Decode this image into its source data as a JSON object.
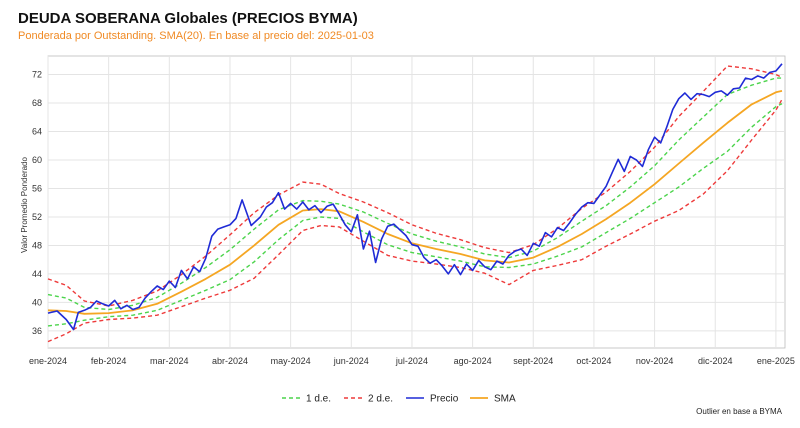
{
  "header": {
    "title": "DEUDA SOBERANA Globales (PRECIOS BYMA)",
    "subtitle": "Ponderada por Outstanding. SMA(20). En base al precio del: 2025-01-03"
  },
  "footnote": "Outlier en base a BYMA",
  "colors": {
    "price": "#1f2bd6",
    "sma": "#f5a623",
    "band1": "#4cd44c",
    "band2": "#ee3a3a",
    "grid": "#e4e4e4",
    "subtitle": "#f08a24"
  },
  "chart_data": {
    "type": "line",
    "title": "DEUDA SOBERANA Globales (PRECIOS BYMA)",
    "subtitle": "Ponderada por Outstanding. SMA(20). En base al precio del: 2025-01-03",
    "xlabel": "",
    "ylabel": "Valor Promedio Ponderado",
    "xlim": [
      0,
      12.15
    ],
    "ylim": [
      33.6,
      74.6
    ],
    "yticks": [
      36,
      40,
      44,
      48,
      52,
      56,
      60,
      64,
      68,
      72
    ],
    "xticks": [
      {
        "x": 0,
        "label": "ene-2024"
      },
      {
        "x": 1,
        "label": "feb-2024"
      },
      {
        "x": 2,
        "label": "mar-2024"
      },
      {
        "x": 3,
        "label": "abr-2024"
      },
      {
        "x": 4,
        "label": "may-2024"
      },
      {
        "x": 5,
        "label": "jun-2024"
      },
      {
        "x": 6,
        "label": "jul-2024"
      },
      {
        "x": 7,
        "label": "ago-2024"
      },
      {
        "x": 8,
        "label": "sept-2024"
      },
      {
        "x": 9,
        "label": "oct-2024"
      },
      {
        "x": 10,
        "label": "nov-2024"
      },
      {
        "x": 11,
        "label": "dic-2024"
      },
      {
        "x": 12,
        "label": "ene-2025"
      }
    ],
    "grid": true,
    "legend": {
      "position": "bottom-center",
      "entries": [
        {
          "key": "band1",
          "label": "1 d.e."
        },
        {
          "key": "band2",
          "label": "2 d.e."
        },
        {
          "key": "price",
          "label": "Precio"
        },
        {
          "key": "sma",
          "label": "SMA"
        }
      ]
    },
    "series": [
      {
        "name": "Precio",
        "key": "price",
        "x": [
          0.0,
          0.15,
          0.3,
          0.42,
          0.5,
          0.6,
          0.7,
          0.8,
          0.9,
          1.0,
          1.1,
          1.2,
          1.3,
          1.4,
          1.5,
          1.6,
          1.7,
          1.8,
          1.9,
          2.0,
          2.1,
          2.2,
          2.3,
          2.4,
          2.5,
          2.6,
          2.7,
          2.8,
          2.9,
          3.0,
          3.1,
          3.2,
          3.35,
          3.5,
          3.6,
          3.7,
          3.8,
          3.9,
          4.0,
          4.1,
          4.2,
          4.3,
          4.4,
          4.5,
          4.6,
          4.7,
          4.8,
          4.9,
          5.0,
          5.1,
          5.2,
          5.3,
          5.4,
          5.5,
          5.6,
          5.7,
          5.8,
          5.9,
          6.0,
          6.1,
          6.2,
          6.3,
          6.4,
          6.5,
          6.6,
          6.7,
          6.8,
          6.9,
          7.0,
          7.1,
          7.2,
          7.3,
          7.4,
          7.5,
          7.6,
          7.7,
          7.8,
          7.9,
          8.0,
          8.1,
          8.2,
          8.3,
          8.4,
          8.5,
          8.6,
          8.7,
          8.8,
          8.9,
          9.0,
          9.1,
          9.2,
          9.3,
          9.4,
          9.5,
          9.6,
          9.7,
          9.8,
          9.9,
          10.0,
          10.1,
          10.2,
          10.3,
          10.4,
          10.5,
          10.6,
          10.7,
          10.8,
          10.9,
          11.0,
          11.1,
          11.2,
          11.3,
          11.4,
          11.5,
          11.6,
          11.7,
          11.8,
          11.9,
          12.0,
          12.1
        ],
        "values": [
          38.5,
          38.8,
          37.6,
          36.2,
          38.6,
          38.9,
          39.3,
          40.2,
          39.8,
          39.5,
          40.3,
          39.1,
          39.6,
          39.0,
          39.3,
          40.6,
          41.5,
          42.3,
          41.8,
          43.0,
          42.1,
          44.5,
          43.3,
          45.0,
          44.3,
          46.2,
          49.3,
          50.3,
          50.6,
          50.9,
          51.8,
          54.4,
          50.8,
          52.0,
          53.4,
          54.0,
          55.4,
          53.1,
          53.9,
          53.1,
          54.1,
          53.0,
          53.6,
          52.6,
          53.5,
          53.8,
          52.4,
          50.9,
          49.9,
          52.3,
          47.5,
          50.0,
          45.6,
          48.9,
          50.7,
          51.0,
          50.2,
          49.4,
          48.1,
          47.9,
          46.3,
          45.5,
          46.0,
          45.1,
          44.0,
          45.3,
          43.9,
          45.4,
          44.5,
          45.9,
          45.0,
          44.6,
          45.8,
          45.4,
          46.6,
          47.2,
          47.5,
          46.6,
          48.3,
          47.9,
          49.8,
          49.2,
          50.5,
          50.1,
          51.2,
          52.4,
          53.4,
          54.0,
          53.9,
          55.1,
          56.3,
          58.2,
          60.1,
          58.4,
          60.5,
          60.0,
          59.1,
          61.5,
          63.2,
          62.4,
          64.6,
          67.1,
          68.6,
          69.4,
          68.5,
          69.3,
          69.2,
          68.9,
          69.5,
          69.7,
          69.1,
          70.0,
          70.1,
          71.5,
          71.3,
          71.8,
          71.5,
          72.3,
          72.5,
          73.5
        ]
      },
      {
        "name": "SMA",
        "key": "sma",
        "x": [
          0.0,
          0.3,
          0.6,
          1.0,
          1.4,
          1.8,
          2.2,
          2.6,
          3.0,
          3.4,
          3.8,
          4.2,
          4.5,
          4.8,
          5.2,
          5.6,
          6.0,
          6.4,
          6.8,
          7.2,
          7.6,
          8.0,
          8.4,
          8.8,
          9.2,
          9.6,
          10.0,
          10.4,
          10.8,
          11.2,
          11.6,
          12.0,
          12.1
        ],
        "values": [
          38.9,
          38.8,
          38.4,
          38.5,
          38.9,
          39.8,
          41.5,
          43.3,
          45.3,
          48.0,
          50.9,
          52.9,
          53.1,
          52.8,
          51.3,
          49.6,
          48.3,
          47.5,
          46.8,
          45.9,
          45.6,
          46.3,
          47.8,
          49.6,
          51.7,
          54.0,
          56.6,
          59.5,
          62.4,
          65.2,
          67.8,
          69.5,
          69.7
        ]
      },
      {
        "name": "+1 d.e.",
        "key": "band1",
        "x": [
          0.0,
          0.3,
          0.6,
          1.0,
          1.4,
          1.8,
          2.2,
          2.6,
          3.0,
          3.4,
          3.8,
          4.2,
          4.5,
          4.8,
          5.2,
          5.6,
          6.0,
          6.4,
          6.8,
          7.2,
          7.6,
          8.0,
          8.4,
          8.8,
          9.2,
          9.6,
          10.0,
          10.4,
          10.8,
          11.2,
          11.6,
          12.0,
          12.1
        ],
        "values": [
          41.1,
          40.6,
          39.3,
          39.0,
          39.6,
          40.7,
          42.7,
          44.9,
          47.4,
          50.3,
          53.0,
          54.3,
          54.2,
          53.8,
          52.7,
          51.1,
          49.6,
          48.6,
          47.8,
          46.8,
          46.3,
          47.2,
          49.1,
          51.4,
          53.6,
          56.2,
          59.2,
          62.8,
          66.0,
          69.2,
          70.5,
          71.5,
          71.5
        ]
      },
      {
        "name": "-1 d.e.",
        "key": "band1",
        "x": [
          0.0,
          0.3,
          0.6,
          1.0,
          1.4,
          1.8,
          2.2,
          2.6,
          3.0,
          3.4,
          3.8,
          4.2,
          4.5,
          4.8,
          5.2,
          5.6,
          6.0,
          6.4,
          6.8,
          7.2,
          7.6,
          8.0,
          8.4,
          8.8,
          9.2,
          9.6,
          10.0,
          10.4,
          10.8,
          11.2,
          11.6,
          12.0,
          12.1
        ],
        "values": [
          36.7,
          37.0,
          37.5,
          38.0,
          38.2,
          38.9,
          40.3,
          41.7,
          43.2,
          45.7,
          48.8,
          51.5,
          52.0,
          51.8,
          49.9,
          48.1,
          47.0,
          46.4,
          45.8,
          45.0,
          44.9,
          45.4,
          46.5,
          47.8,
          49.8,
          51.8,
          54.0,
          56.2,
          58.8,
          61.2,
          64.6,
          67.5,
          67.9
        ]
      },
      {
        "name": "+2 d.e.",
        "key": "band2",
        "x": [
          0.0,
          0.3,
          0.6,
          1.0,
          1.4,
          1.8,
          2.2,
          2.6,
          3.0,
          3.4,
          3.8,
          4.2,
          4.5,
          4.8,
          5.2,
          5.6,
          6.0,
          6.4,
          6.8,
          7.2,
          7.6,
          8.0,
          8.4,
          8.8,
          9.2,
          9.6,
          10.0,
          10.4,
          10.8,
          11.2,
          11.6,
          12.0,
          12.1
        ],
        "values": [
          43.3,
          42.4,
          40.2,
          39.5,
          40.3,
          41.6,
          43.9,
          46.5,
          49.5,
          52.6,
          55.1,
          56.9,
          56.6,
          55.3,
          54.1,
          52.6,
          50.9,
          49.7,
          48.8,
          47.7,
          47.0,
          48.1,
          50.4,
          53.2,
          55.5,
          58.4,
          61.8,
          66.1,
          69.6,
          73.2,
          72.8,
          72.0,
          71.6
        ]
      },
      {
        "name": "-2 d.e.",
        "key": "band2",
        "x": [
          0.0,
          0.3,
          0.6,
          1.0,
          1.4,
          1.8,
          2.2,
          2.6,
          3.0,
          3.4,
          3.8,
          4.2,
          4.5,
          4.8,
          5.2,
          5.6,
          6.0,
          6.4,
          6.8,
          7.2,
          7.6,
          8.0,
          8.4,
          8.8,
          9.2,
          9.6,
          10.0,
          10.4,
          10.8,
          11.2,
          11.6,
          12.0,
          12.1
        ],
        "values": [
          34.5,
          35.6,
          37.1,
          37.6,
          37.8,
          38.2,
          39.4,
          40.6,
          41.7,
          43.4,
          46.7,
          50.1,
          50.8,
          50.6,
          48.6,
          46.6,
          45.8,
          45.4,
          44.9,
          44.1,
          42.5,
          44.5,
          45.2,
          46.0,
          47.9,
          49.6,
          51.4,
          52.9,
          55.2,
          58.5,
          62.8,
          67.0,
          68.5
        ]
      }
    ]
  }
}
